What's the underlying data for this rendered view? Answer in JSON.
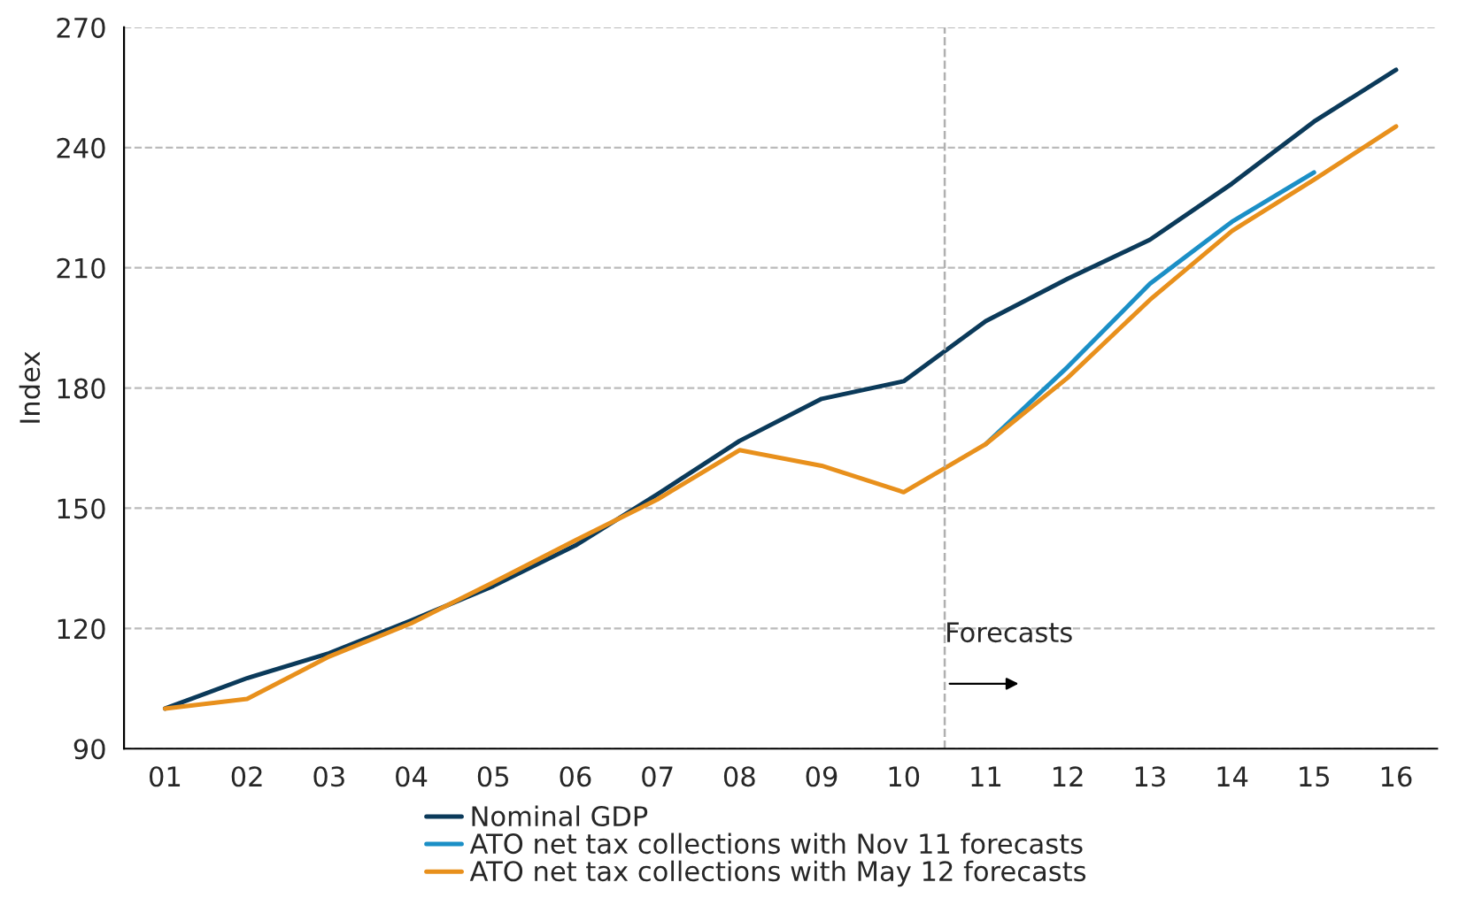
{
  "chart_data": {
    "type": "line",
    "ylabel": "Index",
    "x": [
      1,
      2,
      3,
      4,
      5,
      6,
      7,
      8,
      9,
      10,
      11,
      12,
      13,
      14,
      15,
      16
    ],
    "xlim": [
      0.5,
      16.5
    ],
    "xticks": [
      {
        "value": 1,
        "label": "01"
      },
      {
        "value": 2,
        "label": "02"
      },
      {
        "value": 3,
        "label": "03"
      },
      {
        "value": 4,
        "label": "04"
      },
      {
        "value": 5,
        "label": "05"
      },
      {
        "value": 6,
        "label": "06"
      },
      {
        "value": 7,
        "label": "07"
      },
      {
        "value": 8,
        "label": "08"
      },
      {
        "value": 9,
        "label": "09"
      },
      {
        "value": 10,
        "label": "10"
      },
      {
        "value": 11,
        "label": "11"
      },
      {
        "value": 12,
        "label": "12"
      },
      {
        "value": 13,
        "label": "13"
      },
      {
        "value": 14,
        "label": "14"
      },
      {
        "value": 15,
        "label": "15"
      },
      {
        "value": 16,
        "label": "16"
      }
    ],
    "ylim": [
      90,
      270
    ],
    "yticks": [
      90,
      120,
      150,
      180,
      210,
      240,
      270
    ],
    "grid": "y",
    "legend": "bottom",
    "marker": "none",
    "line_style": "solid",
    "series": [
      {
        "name": "Nominal GDP",
        "color": "#0b3a5a",
        "values": [
          100,
          107.6,
          113.8,
          122,
          130.6,
          140.7,
          153.5,
          166.8,
          177.3,
          181.7,
          196.7,
          207.3,
          217,
          231,
          246.5,
          259.4
        ]
      },
      {
        "name": "ATO net tax collections with Nov 11 forecasts",
        "color": "#1b8fc6",
        "values": [
          null,
          null,
          null,
          null,
          null,
          null,
          null,
          null,
          null,
          null,
          166,
          185.3,
          206,
          221.5,
          233.8,
          null
        ]
      },
      {
        "name": "ATO net tax collections with May 12 forecasts",
        "color": "#e8901c",
        "values": [
          100,
          102.4,
          113,
          121.3,
          131.5,
          142,
          152.2,
          164.5,
          160.6,
          154,
          166,
          182.6,
          202,
          219.2,
          232,
          245.3
        ]
      }
    ],
    "ref_lines": [
      {
        "axis": "x",
        "value": 10.5,
        "color": "#b0b0b0",
        "line_style": "dashed"
      }
    ],
    "annotations": [
      "Forecasts"
    ]
  }
}
